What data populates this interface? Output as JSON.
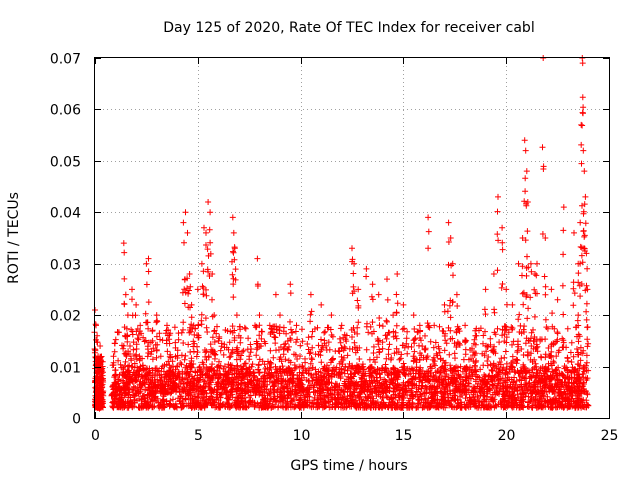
{
  "chart_data": {
    "type": "scatter",
    "title": "Day 125 of 2020, Rate Of TEC Index for receiver cabl",
    "xlabel": "GPS time / hours",
    "ylabel": "ROTI / TECUs",
    "xlim": [
      0,
      25
    ],
    "ylim": [
      0,
      0.07
    ],
    "x_ticks": [
      0,
      5,
      10,
      15,
      20,
      25
    ],
    "x_tick_labels": [
      "0",
      "5",
      "10",
      "15",
      "20",
      "25"
    ],
    "y_ticks": [
      0,
      0.01,
      0.02,
      0.03,
      0.04,
      0.05,
      0.06,
      0.07
    ],
    "y_tick_labels": [
      "0",
      "0.01",
      "0.02",
      "0.03",
      "0.04",
      "0.05",
      "0.06",
      "0.07"
    ],
    "grid": true,
    "marker": "plus",
    "color": "#ff0000",
    "series": [
      {
        "name": "ROTI",
        "points": [
          [
            0.0,
            0.021
          ],
          [
            0.05,
            0.018
          ],
          [
            0.1,
            0.016
          ],
          [
            0.15,
            0.012
          ],
          [
            0.2,
            0.009
          ],
          [
            0.25,
            0.014
          ],
          [
            0.3,
            0.011
          ],
          [
            0.35,
            0.006
          ],
          [
            0.05,
            0.004
          ],
          [
            0.1,
            0.008
          ],
          [
            0.2,
            0.003
          ],
          [
            0.3,
            0.005
          ],
          [
            0.9,
            0.012
          ],
          [
            1.0,
            0.008
          ],
          [
            1.2,
            0.006
          ],
          [
            1.4,
            0.034
          ],
          [
            1.5,
            0.024
          ],
          [
            1.6,
            0.02
          ],
          [
            1.7,
            0.014
          ],
          [
            1.8,
            0.025
          ],
          [
            2.0,
            0.022
          ],
          [
            2.2,
            0.018
          ],
          [
            2.5,
            0.03
          ],
          [
            2.6,
            0.031
          ],
          [
            2.8,
            0.015
          ],
          [
            3.0,
            0.02
          ],
          [
            3.2,
            0.012
          ],
          [
            3.5,
            0.018
          ],
          [
            3.8,
            0.01
          ],
          [
            4.3,
            0.038
          ],
          [
            4.4,
            0.04
          ],
          [
            4.5,
            0.036
          ],
          [
            4.6,
            0.028
          ],
          [
            4.7,
            0.022
          ],
          [
            4.8,
            0.018
          ],
          [
            5.0,
            0.025
          ],
          [
            5.2,
            0.03
          ],
          [
            5.3,
            0.037
          ],
          [
            5.4,
            0.036
          ],
          [
            5.5,
            0.042
          ],
          [
            5.6,
            0.04
          ],
          [
            5.7,
            0.028
          ],
          [
            5.8,
            0.02
          ],
          [
            6.0,
            0.015
          ],
          [
            6.7,
            0.039
          ],
          [
            6.75,
            0.036
          ],
          [
            6.8,
            0.033
          ],
          [
            6.9,
            0.02
          ],
          [
            7.0,
            0.016
          ],
          [
            7.5,
            0.012
          ],
          [
            7.9,
            0.031
          ],
          [
            8.0,
            0.02
          ],
          [
            8.5,
            0.018
          ],
          [
            8.8,
            0.024
          ],
          [
            9.0,
            0.02
          ],
          [
            9.5,
            0.026
          ],
          [
            9.8,
            0.018
          ],
          [
            10.5,
            0.024
          ],
          [
            11.0,
            0.022
          ],
          [
            11.5,
            0.02
          ],
          [
            12.0,
            0.018
          ],
          [
            12.5,
            0.033
          ],
          [
            12.6,
            0.03
          ],
          [
            12.8,
            0.025
          ],
          [
            13.2,
            0.029
          ],
          [
            13.5,
            0.026
          ],
          [
            13.8,
            0.024
          ],
          [
            14.2,
            0.027
          ],
          [
            14.5,
            0.02
          ],
          [
            14.7,
            0.028
          ],
          [
            15.0,
            0.022
          ],
          [
            15.5,
            0.02
          ],
          [
            15.8,
            0.018
          ],
          [
            16.2,
            0.039
          ],
          [
            16.5,
            0.018
          ],
          [
            17.0,
            0.022
          ],
          [
            17.2,
            0.038
          ],
          [
            17.3,
            0.035
          ],
          [
            17.4,
            0.03
          ],
          [
            17.6,
            0.024
          ],
          [
            18.0,
            0.018
          ],
          [
            18.5,
            0.016
          ],
          [
            19.0,
            0.025
          ],
          [
            19.4,
            0.028
          ],
          [
            19.6,
            0.043
          ],
          [
            19.8,
            0.037
          ],
          [
            20.0,
            0.025
          ],
          [
            20.3,
            0.022
          ],
          [
            20.6,
            0.03
          ],
          [
            20.8,
            0.035
          ],
          [
            20.9,
            0.054
          ],
          [
            20.95,
            0.052
          ],
          [
            21.0,
            0.048
          ],
          [
            21.05,
            0.042
          ],
          [
            21.2,
            0.03
          ],
          [
            21.4,
            0.028
          ],
          [
            21.5,
            0.03
          ],
          [
            21.8,
            0.07
          ],
          [
            21.9,
            0.035
          ],
          [
            22.2,
            0.025
          ],
          [
            22.5,
            0.023
          ],
          [
            22.8,
            0.041
          ],
          [
            23.3,
            0.036
          ],
          [
            23.5,
            0.03
          ],
          [
            23.65,
            0.057
          ],
          [
            23.7,
            0.07
          ],
          [
            23.72,
            0.069
          ],
          [
            23.75,
            0.052
          ],
          [
            23.8,
            0.048
          ],
          [
            23.85,
            0.043
          ],
          [
            23.6,
            0.038
          ],
          [
            23.9,
            0.032
          ],
          [
            23.95,
            0.025
          ],
          [
            23.5,
            0.02
          ]
        ],
        "dense_bands": [
          {
            "x0": 0.0,
            "x1": 0.4,
            "y_min": 0.002,
            "y_max": 0.012,
            "count": 200
          },
          {
            "x0": 0.8,
            "x1": 24.0,
            "y_min": 0.002,
            "y_max": 0.01,
            "count": 2600
          },
          {
            "x0": 0.9,
            "x1": 24.0,
            "y_min": 0.005,
            "y_max": 0.018,
            "count": 1400
          }
        ]
      }
    ]
  }
}
